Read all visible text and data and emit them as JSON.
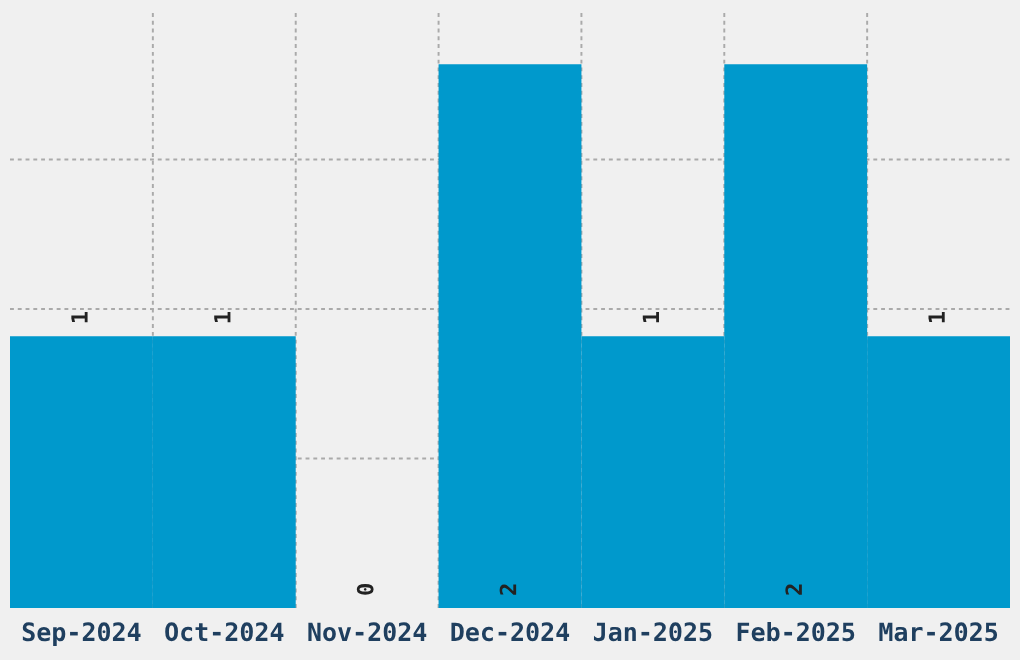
{
  "chart_data": {
    "type": "bar",
    "categories": [
      "Sep-2024",
      "Oct-2024",
      "Nov-2024",
      "Dec-2024",
      "Jan-2025",
      "Feb-2025",
      "Mar-2025"
    ],
    "values": [
      1,
      1,
      0,
      2,
      1,
      2,
      1
    ],
    "color": "#0099cc",
    "ylim": [
      0,
      2.2
    ],
    "yticks": [
      {
        "value": 0.55,
        "label": null
      },
      {
        "value": 1.1,
        "label": null
      },
      {
        "value": 1.65,
        "label": null
      }
    ],
    "tick_labels": "x",
    "grid": true,
    "data_labels": true
  }
}
